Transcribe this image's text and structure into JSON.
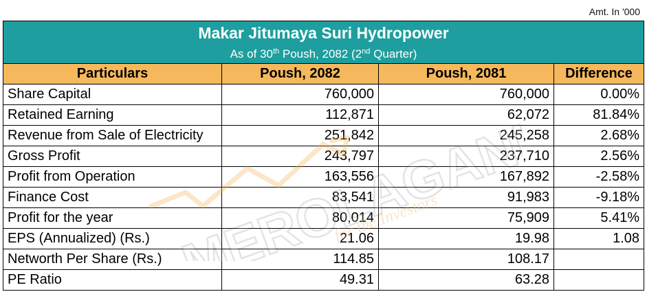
{
  "amount_note": "Amt. In '000",
  "title": "Makar Jitumaya Suri Hydropower",
  "subtitle": {
    "prefix": "As of 30",
    "sup1": "th",
    "middle": " Poush, 2082 (2",
    "sup2": "nd",
    "suffix": " Quarter)"
  },
  "columns": [
    "Particulars",
    "Poush, 2082",
    "Poush, 2081",
    "Difference"
  ],
  "rows": [
    {
      "particular": "Share Capital",
      "current": "760,000",
      "previous": "760,000",
      "difference": "0.00%"
    },
    {
      "particular": "Retained Earning",
      "current": "112,871",
      "previous": "62,072",
      "difference": "81.84%"
    },
    {
      "particular": "Revenue from Sale of Electricity",
      "current": "251,842",
      "previous": "245,258",
      "difference": "2.68%"
    },
    {
      "particular": "Gross Profit",
      "current": "243,797",
      "previous": "237,710",
      "difference": "2.56%"
    },
    {
      "particular": "Profit from Operation",
      "current": "163,556",
      "previous": "167,892",
      "difference": "-2.58%"
    },
    {
      "particular": "Finance Cost",
      "current": "83,541",
      "previous": "91,983",
      "difference": "-9.18%"
    },
    {
      "particular": "Profit for the year",
      "current": "80,014",
      "previous": "75,909",
      "difference": "5.41%"
    },
    {
      "particular": "EPS (Annualized) (Rs.)",
      "current": "21.06",
      "previous": "19.98",
      "difference": "1.08"
    },
    {
      "particular": "Networth Per Share (Rs.)",
      "current": "114.85",
      "previous": "108.17",
      "difference": ""
    },
    {
      "particular": "PE Ratio",
      "current": "49.31",
      "previous": "63.28",
      "difference": ""
    }
  ],
  "watermark": {
    "brand": "MEROLAGANI",
    "tagline": "for the Investors"
  },
  "colors": {
    "title_bg": "#1e9e9e",
    "header_bg": "#f5b85c",
    "watermark": "#f3c98a"
  }
}
